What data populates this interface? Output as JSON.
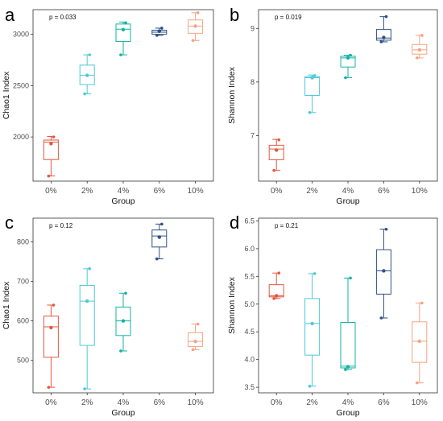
{
  "figure": {
    "group_labels": [
      "0%",
      "2%",
      "4%",
      "6%",
      "10%"
    ],
    "colors": [
      "#e4573f",
      "#4ec9d6",
      "#14b3a3",
      "#2e4f87",
      "#f6a383"
    ]
  },
  "chart_data": [
    {
      "panel_label": "a",
      "type": "box",
      "xlabel": "Group",
      "ylabel": "Chao1  Index",
      "annotation": "p = 0.033",
      "categories": [
        "0%",
        "2%",
        "4%",
        "6%",
        "10%"
      ],
      "ylim": [
        1570,
        3240
      ],
      "yticks": [
        2000,
        2500,
        3000
      ],
      "boxes": [
        {
          "min": 1620,
          "q1": 1780,
          "median": 1950,
          "q3": 1970,
          "max": 2005,
          "mean": 1935,
          "points": [
            1620,
            1935,
            2000
          ]
        },
        {
          "min": 2420,
          "q1": 2510,
          "median": 2600,
          "q3": 2700,
          "max": 2800,
          "mean": 2600,
          "points": [
            2420,
            2600,
            2800
          ]
        },
        {
          "min": 2800,
          "q1": 2930,
          "median": 3050,
          "q3": 3100,
          "max": 3120,
          "mean": 3045,
          "points": [
            2800,
            3045,
            3110
          ]
        },
        {
          "min": 2990,
          "q1": 3000,
          "median": 3020,
          "q3": 3040,
          "max": 3060,
          "mean": 3030,
          "points": [
            2990,
            3030,
            3060
          ]
        },
        {
          "min": 2940,
          "q1": 3010,
          "median": 3080,
          "q3": 3140,
          "max": 3210,
          "mean": 3080,
          "points": [
            2940,
            3080,
            3210
          ]
        }
      ]
    },
    {
      "panel_label": "b",
      "type": "box",
      "xlabel": "Group",
      "ylabel": "Shannon  Index",
      "annotation": "p = 0.019",
      "categories": [
        "0%",
        "2%",
        "4%",
        "6%",
        "10%"
      ],
      "ylim": [
        6.15,
        9.35
      ],
      "yticks": [
        7,
        8,
        9
      ],
      "boxes": [
        {
          "min": 6.35,
          "q1": 6.55,
          "median": 6.75,
          "q3": 6.82,
          "max": 6.93,
          "mean": 6.73,
          "points": [
            6.35,
            6.73,
            6.92
          ]
        },
        {
          "min": 7.43,
          "q1": 7.75,
          "median": 8.08,
          "q3": 8.1,
          "max": 8.13,
          "mean": 8.08,
          "points": [
            7.43,
            8.08,
            8.12
          ]
        },
        {
          "min": 8.08,
          "q1": 8.28,
          "median": 8.45,
          "q3": 8.48,
          "max": 8.5,
          "mean": 8.45,
          "points": [
            8.08,
            8.45,
            8.5
          ]
        },
        {
          "min": 8.75,
          "q1": 8.78,
          "median": 8.82,
          "q3": 8.98,
          "max": 9.22,
          "mean": 8.83,
          "points": [
            8.75,
            8.83,
            9.22
          ]
        },
        {
          "min": 8.45,
          "q1": 8.52,
          "median": 8.6,
          "q3": 8.7,
          "max": 8.87,
          "mean": 8.6,
          "points": [
            8.45,
            8.6,
            8.87
          ]
        }
      ]
    },
    {
      "panel_label": "c",
      "type": "box",
      "xlabel": "Group",
      "ylabel": "Chao1  Index",
      "annotation": "p = 0.12",
      "categories": [
        "0%",
        "2%",
        "4%",
        "6%",
        "10%"
      ],
      "ylim": [
        418,
        860
      ],
      "yticks": [
        500,
        600,
        700,
        800
      ],
      "boxes": [
        {
          "min": 432,
          "q1": 508,
          "median": 585,
          "q3": 612,
          "max": 640,
          "mean": 583,
          "points": [
            432,
            583,
            640
          ]
        },
        {
          "min": 428,
          "q1": 538,
          "median": 650,
          "q3": 690,
          "max": 732,
          "mean": 650,
          "points": [
            428,
            650,
            732
          ]
        },
        {
          "min": 524,
          "q1": 563,
          "median": 600,
          "q3": 635,
          "max": 670,
          "mean": 600,
          "points": [
            524,
            600,
            670
          ]
        },
        {
          "min": 757,
          "q1": 787,
          "median": 815,
          "q3": 830,
          "max": 845,
          "mean": 812,
          "points": [
            757,
            812,
            845
          ]
        },
        {
          "min": 527,
          "q1": 535,
          "median": 548,
          "q3": 570,
          "max": 592,
          "mean": 548,
          "points": [
            527,
            548,
            592
          ]
        }
      ]
    },
    {
      "panel_label": "d",
      "type": "box",
      "xlabel": "Group",
      "ylabel": "Shannon  Index",
      "annotation": "p = 0.21",
      "categories": [
        "0%",
        "2%",
        "4%",
        "6%",
        "10%"
      ],
      "ylim": [
        3.4,
        6.55
      ],
      "yticks": [
        3.5,
        4.0,
        4.5,
        5.0,
        5.5,
        6.0,
        6.5
      ],
      "boxes": [
        {
          "min": 5.1,
          "q1": 5.13,
          "median": 5.15,
          "q3": 5.35,
          "max": 5.56,
          "mean": 5.15,
          "points": [
            5.1,
            5.15,
            5.56
          ]
        },
        {
          "min": 3.52,
          "q1": 4.08,
          "median": 4.65,
          "q3": 5.1,
          "max": 5.55,
          "mean": 4.65,
          "points": [
            3.52,
            4.65,
            5.55
          ]
        },
        {
          "min": 3.82,
          "q1": 3.85,
          "median": 3.88,
          "q3": 4.67,
          "max": 5.47,
          "mean": 3.87,
          "points": [
            3.82,
            3.87,
            5.47
          ]
        },
        {
          "min": 4.75,
          "q1": 5.18,
          "median": 5.6,
          "q3": 5.98,
          "max": 6.35,
          "mean": 5.6,
          "points": [
            4.75,
            5.6,
            6.35
          ]
        },
        {
          "min": 3.58,
          "q1": 3.95,
          "median": 4.33,
          "q3": 4.68,
          "max": 5.02,
          "mean": 4.33,
          "points": [
            3.58,
            4.33,
            5.02
          ]
        }
      ]
    }
  ]
}
